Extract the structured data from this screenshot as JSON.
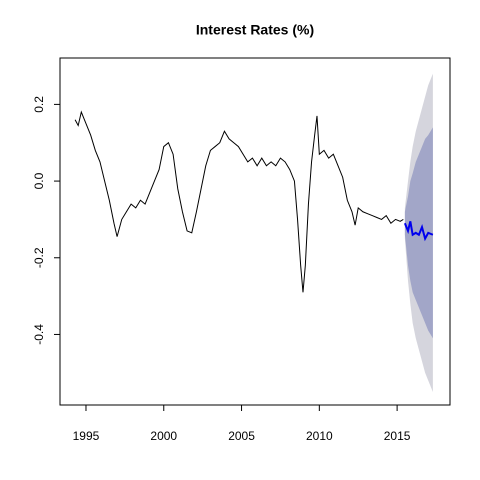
{
  "chart_data": {
    "type": "line",
    "title": "Interest Rates (%)",
    "x": [
      1994.3,
      1994.5,
      1994.7,
      1995.0,
      1995.3,
      1995.6,
      1995.9,
      1996.2,
      1996.5,
      1996.8,
      1997.0,
      1997.3,
      1997.6,
      1997.9,
      1998.2,
      1998.5,
      1998.8,
      1999.1,
      1999.4,
      1999.7,
      2000.0,
      2000.3,
      2000.6,
      2000.9,
      2001.2,
      2001.5,
      2001.8,
      2002.1,
      2002.4,
      2002.7,
      2003.0,
      2003.3,
      2003.6,
      2003.9,
      2004.2,
      2004.5,
      2004.8,
      2005.1,
      2005.4,
      2005.7,
      2006.0,
      2006.3,
      2006.6,
      2006.9,
      2007.2,
      2007.5,
      2007.8,
      2008.1,
      2008.4,
      2008.6,
      2008.8,
      2008.95,
      2009.1,
      2009.3,
      2009.5,
      2009.7,
      2009.85,
      2010.0,
      2010.3,
      2010.6,
      2010.9,
      2011.2,
      2011.5,
      2011.8,
      2012.1,
      2012.3,
      2012.5,
      2012.8,
      2013.1,
      2013.4,
      2013.7,
      2014.0,
      2014.3,
      2014.6,
      2014.9,
      2015.2,
      2015.4
    ],
    "values": [
      0.16,
      0.145,
      0.18,
      0.15,
      0.12,
      0.08,
      0.05,
      0.0,
      -0.05,
      -0.11,
      -0.145,
      -0.1,
      -0.08,
      -0.06,
      -0.07,
      -0.05,
      -0.06,
      -0.03,
      0.0,
      0.03,
      0.09,
      0.1,
      0.07,
      -0.02,
      -0.08,
      -0.13,
      -0.135,
      -0.08,
      -0.02,
      0.04,
      0.08,
      0.09,
      0.1,
      0.13,
      0.11,
      0.1,
      0.09,
      0.07,
      0.05,
      0.06,
      0.04,
      0.06,
      0.04,
      0.05,
      0.04,
      0.06,
      0.05,
      0.03,
      0.0,
      -0.1,
      -0.22,
      -0.29,
      -0.22,
      -0.06,
      0.05,
      0.12,
      0.17,
      0.07,
      0.08,
      0.06,
      0.07,
      0.04,
      0.01,
      -0.05,
      -0.08,
      -0.115,
      -0.07,
      -0.08,
      -0.085,
      -0.09,
      -0.095,
      -0.1,
      -0.09,
      -0.11,
      -0.1,
      -0.105,
      -0.1
    ],
    "color": "#000000",
    "forecast": {
      "x": [
        2015.5,
        2015.7,
        2015.85,
        2016.0,
        2016.2,
        2016.4,
        2016.6,
        2016.8,
        2017.0,
        2017.3
      ],
      "values": [
        -0.11,
        -0.13,
        -0.105,
        -0.14,
        -0.135,
        -0.14,
        -0.12,
        -0.15,
        -0.135,
        -0.14
      ],
      "color": "#0000ee"
    },
    "bands": [
      {
        "upper": [
          -0.07,
          0.0,
          0.05,
          0.09,
          0.13,
          0.16,
          0.19,
          0.22,
          0.25,
          0.28
        ],
        "lower": [
          -0.15,
          -0.26,
          -0.32,
          -0.37,
          -0.41,
          -0.44,
          -0.47,
          -0.5,
          -0.52,
          -0.55
        ],
        "color": "#d5d5dd"
      },
      {
        "upper": [
          -0.08,
          -0.04,
          0.0,
          0.02,
          0.05,
          0.07,
          0.09,
          0.11,
          0.12,
          0.14
        ],
        "lower": [
          -0.14,
          -0.22,
          -0.26,
          -0.29,
          -0.31,
          -0.33,
          -0.35,
          -0.37,
          -0.39,
          -0.41
        ],
        "color": "#a2a6c8"
      }
    ],
    "xlim": [
      1993.33,
      2018.4
    ],
    "xticks": [
      1995,
      2000,
      2005,
      2010,
      2015
    ],
    "ylim": [
      -0.584,
      0.321
    ],
    "yticks": [
      -0.4,
      -0.2,
      {
        "value": 0,
        "label": "0.0"
      },
      0.2
    ],
    "grid": false
  }
}
